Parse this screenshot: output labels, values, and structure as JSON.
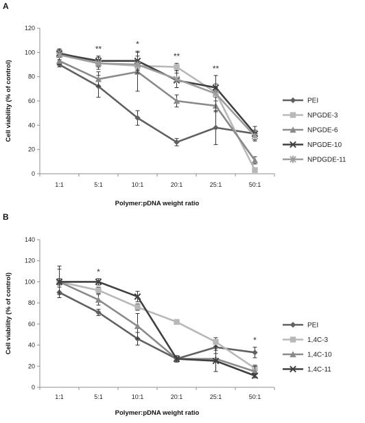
{
  "chart_data": [
    {
      "panel": "A",
      "type": "line",
      "xlabel": "Polymer:pDNA weight ratio",
      "ylabel": "Cell viability (% of control)",
      "categories": [
        "1:1",
        "5:1",
        "10:1",
        "20:1",
        "25:1",
        "50:1"
      ],
      "ylim": [
        0,
        120
      ],
      "yticks": [
        0,
        20,
        40,
        60,
        80,
        100,
        120
      ],
      "grid": false,
      "legend_position": "right",
      "significance": [
        {
          "category": "5:1",
          "label": "**"
        },
        {
          "category": "10:1",
          "label": "*"
        },
        {
          "category": "20:1",
          "label": "**"
        },
        {
          "category": "25:1",
          "label": "**"
        }
      ],
      "series": [
        {
          "name": "PEI",
          "marker": "diamond",
          "color": "#606060",
          "values": [
            90,
            72,
            46,
            26,
            38,
            33
          ],
          "errors": [
            2,
            9,
            6,
            3,
            14,
            6
          ]
        },
        {
          "name": "NPGDE-3",
          "marker": "square",
          "color": "#b8b8b8",
          "values": [
            100,
            91,
            89,
            88,
            67,
            3
          ],
          "errors": [
            3,
            3,
            3,
            3,
            4,
            1
          ]
        },
        {
          "name": "NPGDE-6",
          "marker": "triangle",
          "color": "#8a8a8a",
          "values": [
            93,
            78,
            84,
            60,
            56,
            11
          ],
          "errors": [
            3,
            6,
            16,
            5,
            4,
            3
          ]
        },
        {
          "name": "NPGDE-10",
          "marker": "x",
          "color": "#404040",
          "values": [
            99,
            93,
            93,
            77,
            71,
            33
          ],
          "errors": [
            3,
            4,
            8,
            6,
            3,
            3
          ]
        },
        {
          "name": "NPDGDE-11",
          "marker": "star",
          "color": "#9c9c9c",
          "values": [
            98,
            91,
            90,
            78,
            66,
            31
          ],
          "errors": [
            4,
            5,
            7,
            7,
            15,
            3
          ]
        }
      ]
    },
    {
      "panel": "B",
      "type": "line",
      "xlabel": "Polymer:pDNA weight ratio",
      "ylabel": "Cell viability (% of control)",
      "categories": [
        "1:1",
        "5:1",
        "10:1",
        "20:1",
        "25:1",
        "50:1"
      ],
      "ylim": [
        0,
        140
      ],
      "yticks": [
        0,
        20,
        40,
        60,
        80,
        100,
        120,
        140
      ],
      "grid": false,
      "legend_position": "right",
      "significance": [
        {
          "category": "5:1",
          "label": "*"
        },
        {
          "category": "50:1",
          "label": "*"
        }
      ],
      "series": [
        {
          "name": "PEI",
          "marker": "diamond",
          "color": "#606060",
          "values": [
            90,
            71,
            46,
            27,
            38,
            33
          ],
          "errors": [
            5,
            3,
            6,
            3,
            6,
            5
          ]
        },
        {
          "name": "1,4C-3",
          "marker": "square",
          "color": "#b8b8b8",
          "values": [
            100,
            92,
            76,
            62,
            43,
            18
          ],
          "errors": [
            3,
            3,
            3,
            2,
            4,
            3
          ]
        },
        {
          "name": "1,4C-10",
          "marker": "triangle",
          "color": "#8a8a8a",
          "values": [
            100,
            83,
            58,
            27,
            27,
            15
          ],
          "errors": [
            12,
            5,
            12,
            3,
            12,
            5
          ]
        },
        {
          "name": "1,4C-11",
          "marker": "x",
          "color": "#404040",
          "values": [
            100,
            100,
            86,
            27,
            25,
            11
          ],
          "errors": [
            15,
            3,
            5,
            3,
            10,
            2
          ]
        }
      ]
    }
  ]
}
